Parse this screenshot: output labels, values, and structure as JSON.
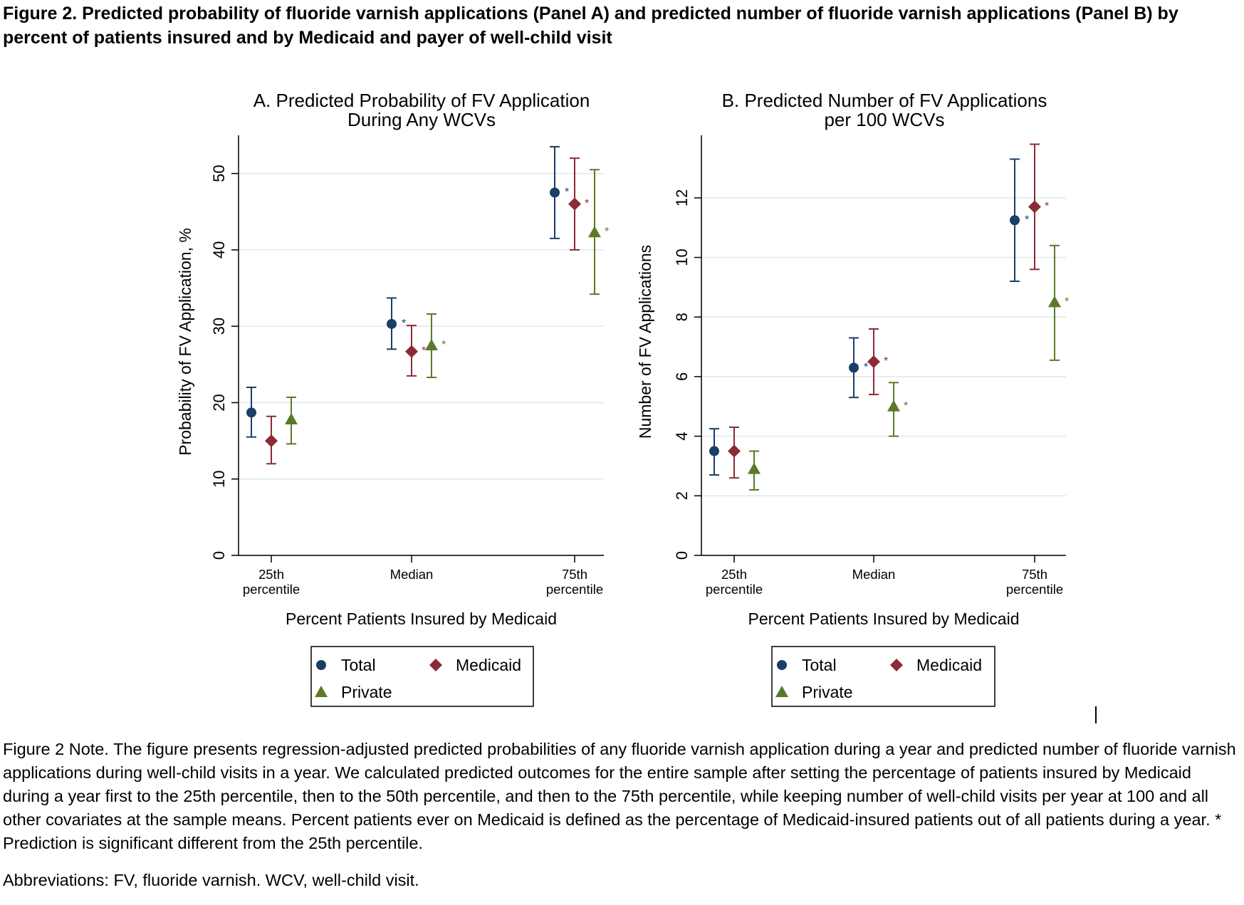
{
  "figure": {
    "title": "Figure 2. Predicted probability of fluoride varnish applications (Panel A) and predicted number of fluoride varnish applications (Panel B) by percent of patients insured and by Medicaid and payer of well-child visit",
    "note": "Figure 2 Note. The figure presents regression-adjusted predicted probabilities of any fluoride varnish application during a year and predicted number of fluoride varnish applications during well-child visits in a year. We calculated predicted outcomes for the entire sample after setting the percentage of patients insured by Medicaid during a year first to the 25th percentile, then to the 50th percentile, and then to the 75th percentile, while keeping number of well-child visits per year at 100 and all other covariates at the sample means. Percent patients ever on Medicaid is defined as the percentage of Medicaid-insured patients out of all patients during a year. * Prediction is significant different from the 25th percentile.",
    "abbreviations": "Abbreviations: FV, fluoride varnish. WCV, well-child visit."
  },
  "colors": {
    "Total": "#1a3f66",
    "Medicaid": "#8c2a36",
    "Private": "#5a7a28",
    "grid": "#dfe8ee",
    "significance_marker_text": "*"
  },
  "chart_data": [
    {
      "type": "scatter",
      "title_lines": [
        "A. Predicted Probability of FV Application",
        "During Any WCVs"
      ],
      "xlabel": "Percent Patients Insured by Medicaid",
      "ylabel": "Probability of FV Application, %",
      "categories": [
        [
          "25th",
          "percentile"
        ],
        [
          "Median"
        ],
        [
          "75th",
          "percentile"
        ]
      ],
      "ylim": [
        0,
        55
      ],
      "yticks": [
        0,
        10,
        20,
        30,
        40,
        50
      ],
      "grid": true,
      "legend_position": "bottom",
      "series": [
        {
          "name": "Total",
          "marker": "circle",
          "values": [
            18.7,
            30.3,
            47.5
          ],
          "lower": [
            15.5,
            27.0,
            41.5
          ],
          "upper": [
            22.0,
            33.7,
            53.5
          ],
          "significant": [
            false,
            true,
            true
          ]
        },
        {
          "name": "Medicaid",
          "marker": "diamond",
          "values": [
            15.0,
            26.7,
            46.0
          ],
          "lower": [
            12.0,
            23.5,
            40.0
          ],
          "upper": [
            18.2,
            30.1,
            52.0
          ],
          "significant": [
            false,
            true,
            true
          ]
        },
        {
          "name": "Private",
          "marker": "triangle",
          "values": [
            17.8,
            27.5,
            42.3
          ],
          "lower": [
            14.6,
            23.3,
            34.2
          ],
          "upper": [
            20.7,
            31.6,
            50.5
          ],
          "significant": [
            false,
            true,
            true
          ]
        }
      ]
    },
    {
      "type": "scatter",
      "title_lines": [
        "B. Predicted Number of FV Applications",
        "per 100 WCVs"
      ],
      "xlabel": "Percent Patients Insured by Medicaid",
      "ylabel": "Number of FV Applications",
      "categories": [
        [
          "25th",
          "percentile"
        ],
        [
          "Median"
        ],
        [
          "75th",
          "percentile"
        ]
      ],
      "ylim": [
        0,
        14.1
      ],
      "yticks": [
        0,
        2,
        4,
        6,
        8,
        10,
        12
      ],
      "grid": true,
      "legend_position": "bottom",
      "series": [
        {
          "name": "Total",
          "marker": "circle",
          "values": [
            3.5,
            6.3,
            11.25
          ],
          "lower": [
            2.7,
            5.3,
            9.2
          ],
          "upper": [
            4.25,
            7.3,
            13.3
          ],
          "significant": [
            false,
            true,
            true
          ]
        },
        {
          "name": "Medicaid",
          "marker": "diamond",
          "values": [
            3.5,
            6.5,
            11.7
          ],
          "lower": [
            2.6,
            5.4,
            9.6
          ],
          "upper": [
            4.3,
            7.6,
            13.8
          ],
          "significant": [
            false,
            true,
            true
          ]
        },
        {
          "name": "Private",
          "marker": "triangle",
          "values": [
            2.9,
            5.0,
            8.5
          ],
          "lower": [
            2.2,
            4.0,
            6.55
          ],
          "upper": [
            3.5,
            5.8,
            10.4
          ],
          "significant": [
            false,
            true,
            true
          ]
        }
      ]
    }
  ]
}
